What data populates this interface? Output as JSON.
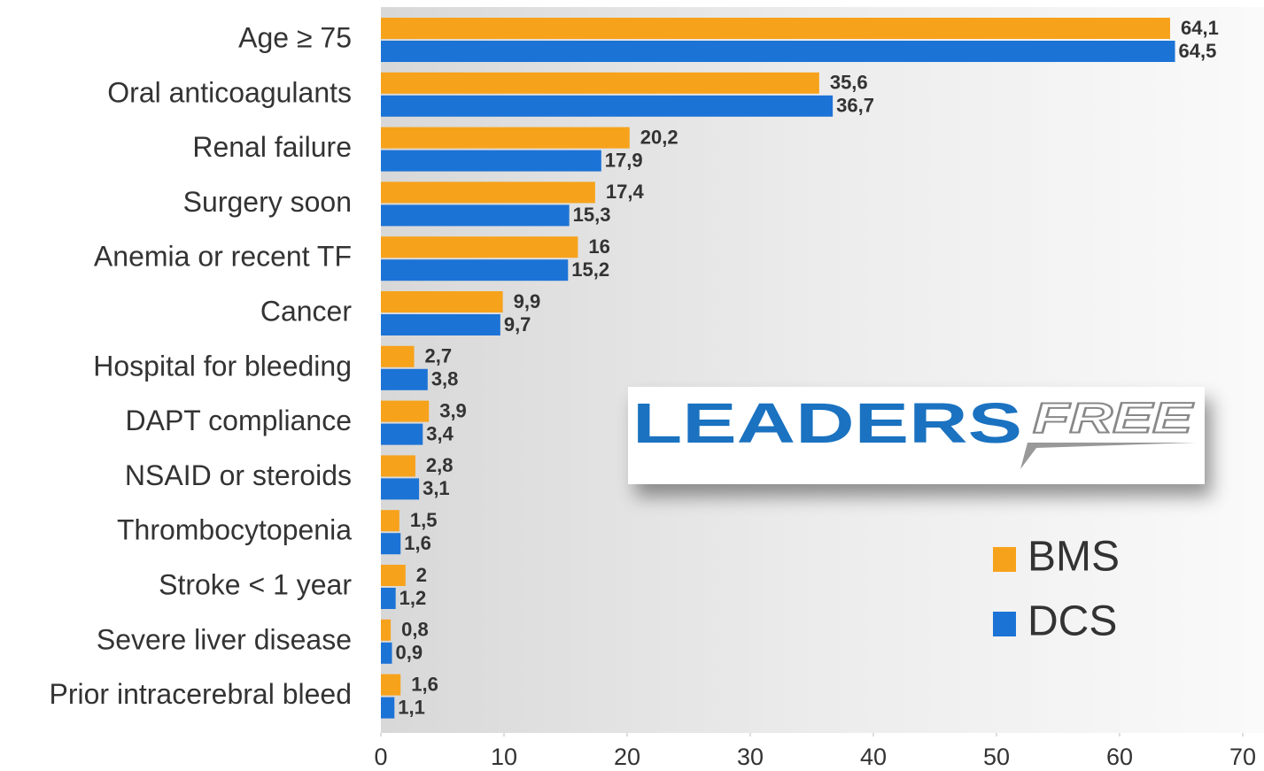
{
  "chart_data": {
    "type": "hbar",
    "categories": [
      "Age ≥ 75",
      "Oral anticoagulants",
      "Renal failure",
      "Surgery soon",
      "Anemia or recent TF",
      "Cancer",
      "Hospital for bleeding",
      "DAPT compliance",
      "NSAID or steroids",
      "Thrombocytopenia",
      "Stroke < 1 year",
      "Severe liver disease",
      "Prior intracerebral bleed"
    ],
    "series": [
      {
        "name": "BMS",
        "color": "#f7a21b",
        "values": [
          64.1,
          35.6,
          20.2,
          17.4,
          16,
          9.9,
          2.7,
          3.9,
          2.8,
          1.5,
          2,
          0.8,
          1.6
        ],
        "value_labels": [
          "64,1",
          "35,6",
          "20,2",
          "17,4",
          "16",
          "9,9",
          "2,7",
          "3,9",
          "2,8",
          "1,5",
          "2",
          "0,8",
          "1,6"
        ]
      },
      {
        "name": "DCS",
        "color": "#1c73d6",
        "values": [
          64.5,
          36.7,
          17.9,
          15.3,
          15.2,
          9.7,
          3.8,
          3.4,
          3.1,
          1.6,
          1.2,
          0.9,
          1.1
        ],
        "value_labels": [
          "64,5",
          "36,7",
          "17,9",
          "15,3",
          "15,2",
          "9,7",
          "3,8",
          "3,4",
          "3,1",
          "1,6",
          "1,2",
          "0,9",
          "1,1"
        ]
      }
    ],
    "xlim": [
      0,
      70
    ],
    "xticks": [
      0,
      10,
      20,
      30,
      40,
      50,
      60,
      70
    ],
    "grid": false,
    "legend": "right",
    "annotations": [
      "LEADERS",
      "FREE"
    ]
  }
}
